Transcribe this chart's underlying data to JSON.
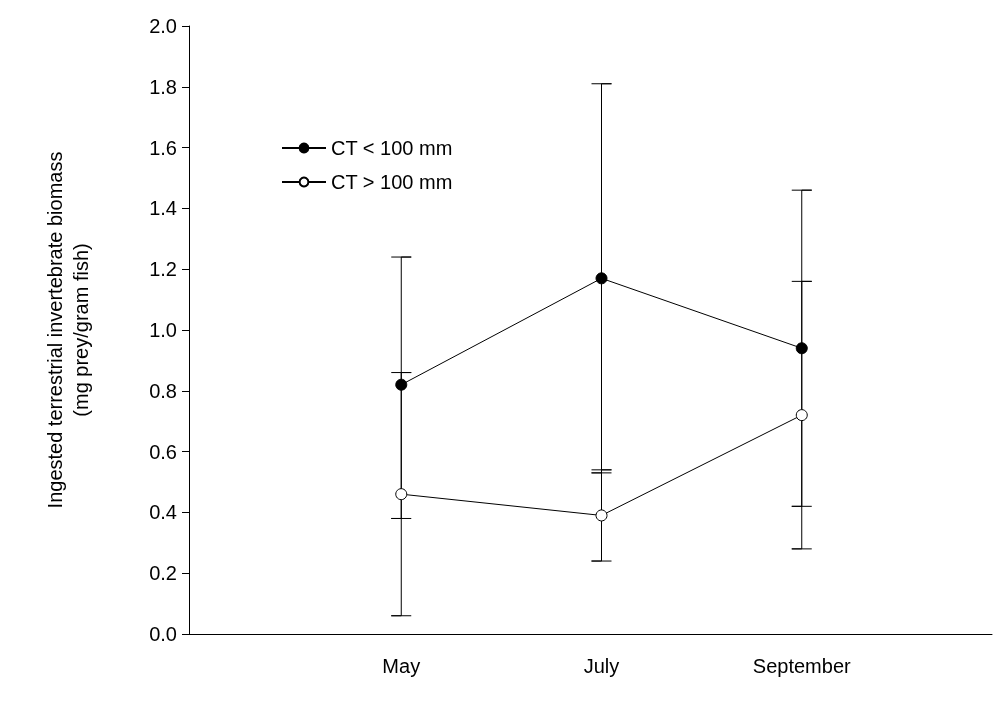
{
  "chart_data": {
    "type": "line",
    "ylabel": "Ingested terrestrial invertebrate biomass\n(mg prey/gram fish)",
    "categories": [
      "May",
      "July",
      "September"
    ],
    "series": [
      {
        "name": "CT < 100 mm",
        "color": "#000000",
        "marker": "circle",
        "values": [
          0.82,
          1.17,
          0.94
        ],
        "errors": [
          [
            0.38,
            1.24
          ],
          [
            0.53,
            1.81
          ],
          [
            0.42,
            1.46
          ]
        ]
      },
      {
        "name": "CT > 100 mm",
        "color": "#ffffff",
        "marker": "circle",
        "values": [
          0.46,
          0.39,
          0.72
        ],
        "errors": [
          [
            0.06,
            0.86
          ],
          [
            0.24,
            0.54
          ],
          [
            0.28,
            1.16
          ]
        ]
      }
    ],
    "ylim": [
      0,
      2
    ],
    "yticks": [
      {
        "value": 0,
        "label": "0.0"
      },
      0.2,
      0.4,
      0.6,
      0.8,
      {
        "value": 1,
        "label": "1.0"
      },
      1.2,
      1.4,
      1.6,
      1.8,
      {
        "value": 2,
        "label": "2.0"
      }
    ],
    "grid": false,
    "legend": "top left",
    "line_style": "solid"
  }
}
